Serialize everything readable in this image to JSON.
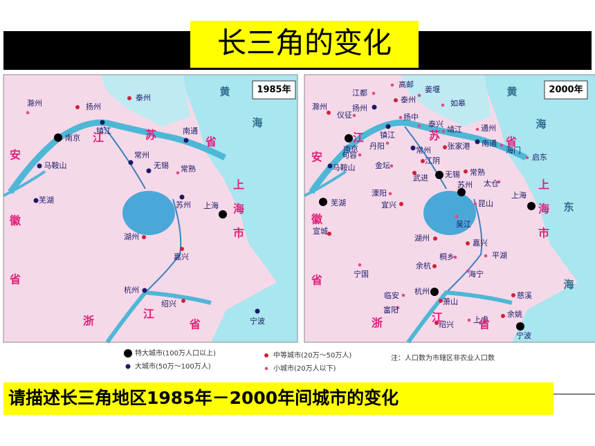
{
  "title": "长三角的变化",
  "maps": [
    {
      "year": "1985年",
      "cities": [
        {
          "name": "滁州",
          "legend": 3
        },
        {
          "name": "扬州",
          "legend": 2
        },
        {
          "name": "泰州",
          "legend": 2
        },
        {
          "name": "镇江",
          "legend": 1
        },
        {
          "name": "南京",
          "legend": 0
        },
        {
          "name": "南通",
          "legend": 1
        },
        {
          "name": "常州",
          "legend": 1
        },
        {
          "name": "马鞍山",
          "legend": 1
        },
        {
          "name": "无锡",
          "legend": 1
        },
        {
          "name": "常熟",
          "legend": 3
        },
        {
          "name": "苏州",
          "legend": 1
        },
        {
          "name": "上海",
          "legend": 0
        },
        {
          "name": "芜湖",
          "legend": 1
        },
        {
          "name": "湖州",
          "legend": 2
        },
        {
          "name": "嘉兴",
          "legend": 2
        },
        {
          "name": "杭州",
          "legend": 1
        },
        {
          "name": "绍兴",
          "legend": 2
        },
        {
          "name": "宁波",
          "legend": 1
        }
      ],
      "regions": [
        "安",
        "徽",
        "省",
        "江",
        "苏",
        "省",
        "上",
        "海",
        "市",
        "浙",
        "江",
        "省",
        "黄",
        "海"
      ]
    },
    {
      "year": "2000年",
      "cities": [
        {
          "name": "高邮",
          "legend": 3
        },
        {
          "name": "江都",
          "legend": 3
        },
        {
          "name": "姜堰",
          "legend": 3
        },
        {
          "name": "泰州",
          "legend": 2
        },
        {
          "name": "扬州",
          "legend": 1
        },
        {
          "name": "如皋",
          "legend": 3
        },
        {
          "name": "仪征",
          "legend": 3
        },
        {
          "name": "扬中",
          "legend": 3
        },
        {
          "name": "泰兴",
          "legend": 3
        },
        {
          "name": "滁州",
          "legend": 2
        },
        {
          "name": "镇江",
          "legend": 1
        },
        {
          "name": "靖江",
          "legend": 3
        },
        {
          "name": "通州",
          "legend": 3
        },
        {
          "name": "南京",
          "legend": 0
        },
        {
          "name": "丹阳",
          "legend": 3
        },
        {
          "name": "常州",
          "legend": 1
        },
        {
          "name": "张家港",
          "legend": 2
        },
        {
          "name": "南通",
          "legend": 1
        },
        {
          "name": "海门",
          "legend": 3
        },
        {
          "name": "启东",
          "legend": 3
        },
        {
          "name": "句容",
          "legend": 3
        },
        {
          "name": "江阴",
          "legend": 2
        },
        {
          "name": "马鞍山",
          "legend": 1
        },
        {
          "name": "金坛",
          "legend": 3
        },
        {
          "name": "武进",
          "legend": 2
        },
        {
          "name": "无锡",
          "legend": 0
        },
        {
          "name": "常熟",
          "legend": 2
        },
        {
          "name": "太仓",
          "legend": 3
        },
        {
          "name": "溧阳",
          "legend": 3
        },
        {
          "name": "苏州",
          "legend": 0
        },
        {
          "name": "昆山",
          "legend": 3
        },
        {
          "name": "上海",
          "legend": 0
        },
        {
          "name": "芜湖",
          "legend": 0
        },
        {
          "name": "宜兴",
          "legend": 2
        },
        {
          "name": "吴江",
          "legend": 3
        },
        {
          "name": "宣城",
          "legend": 2
        },
        {
          "name": "湖州",
          "legend": 2
        },
        {
          "name": "嘉兴",
          "legend": 2
        },
        {
          "name": "平湖",
          "legend": 3
        },
        {
          "name": "桐乡",
          "legend": 3
        },
        {
          "name": "宁国",
          "legend": 3
        },
        {
          "name": "余杭",
          "legend": 2
        },
        {
          "name": "海宁",
          "legend": 3
        },
        {
          "name": "临安",
          "legend": 3
        },
        {
          "name": "杭州",
          "legend": 0
        },
        {
          "name": "慈溪",
          "legend": 2
        },
        {
          "name": "富阳",
          "legend": 3
        },
        {
          "name": "萧山",
          "legend": 2
        },
        {
          "name": "余姚",
          "legend": 2
        },
        {
          "name": "绍兴",
          "legend": 2
        },
        {
          "name": "上虞",
          "legend": 3
        },
        {
          "name": "宁波",
          "legend": 0
        }
      ],
      "regions": [
        "江",
        "苏",
        "省",
        "安",
        "徽",
        "省",
        "上",
        "海",
        "市",
        "浙",
        "江",
        "省",
        "黄",
        "海",
        "东",
        "海"
      ]
    }
  ],
  "legend": {
    "items": [
      "特大城市(100万人口以上)",
      "大城市(50万～100万人)",
      "中等城市(20万～50万人)",
      "小城市(20万人以下)"
    ],
    "note": "注：人口数为市辖区非农业人口数"
  },
  "question": "请描述长三角地区1985年－2000年间城市的变化"
}
